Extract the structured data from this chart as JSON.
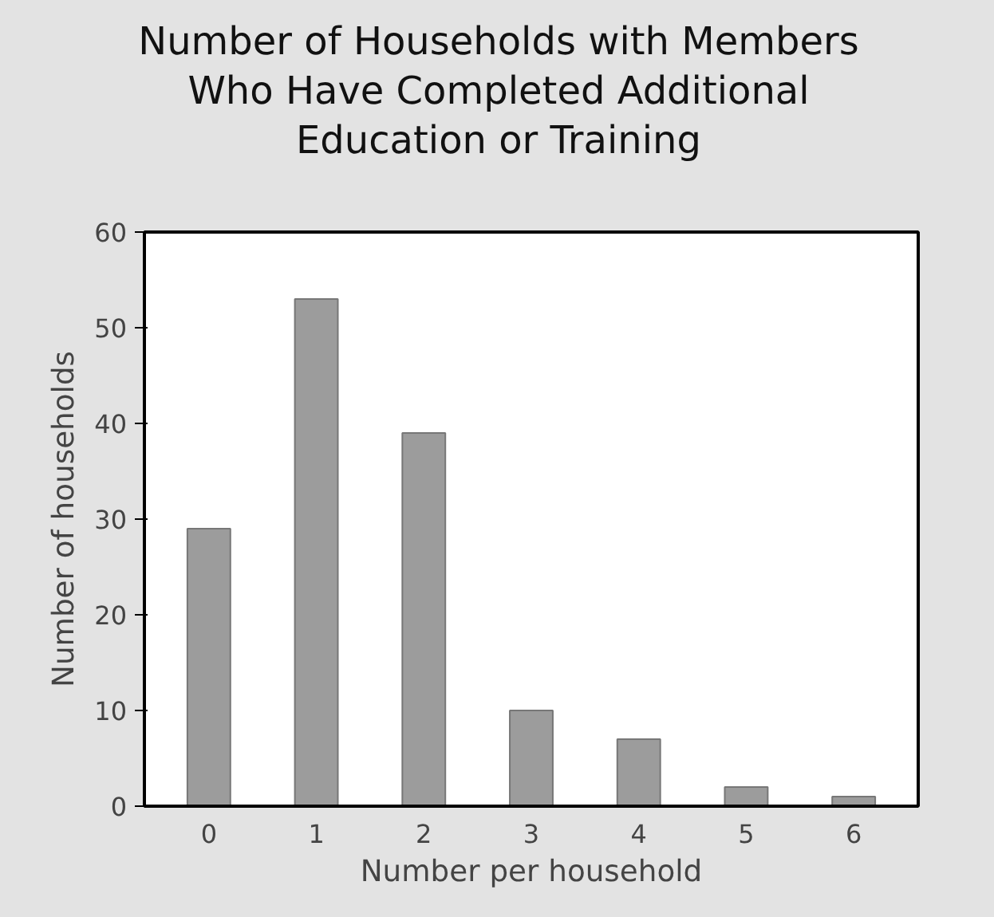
{
  "chart_data": {
    "type": "bar",
    "title": "Number of Households with Members\nWho Have Completed Additional\nEducation or Training",
    "xlabel": "Number per household",
    "ylabel": "Number of households",
    "categories": [
      "0",
      "1",
      "2",
      "3",
      "4",
      "5",
      "6"
    ],
    "values": [
      29,
      53,
      39,
      10,
      7,
      2,
      1
    ],
    "color": "#9c9c9c",
    "ylim": [
      0,
      60
    ],
    "yticks": [
      0,
      10,
      20,
      30,
      40,
      50,
      60
    ],
    "grid": false
  }
}
